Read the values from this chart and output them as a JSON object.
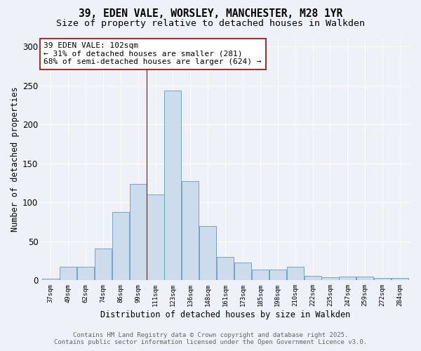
{
  "title_line1": "39, EDEN VALE, WORSLEY, MANCHESTER, M28 1YR",
  "title_line2": "Size of property relative to detached houses in Walkden",
  "xlabel": "Distribution of detached houses by size in Walkden",
  "ylabel": "Number of detached properties",
  "bar_color": "#ccdcec",
  "bar_edge_color": "#6699bb",
  "vline_color": "#993333",
  "vline_position": 5,
  "annotation_title": "39 EDEN VALE: 102sqm",
  "annotation_line2": "← 31% of detached houses are smaller (281)",
  "annotation_line3": "68% of semi-detached houses are larger (624) →",
  "annotation_box_color": "#ffffff",
  "annotation_box_edge_color": "#993333",
  "categories": [
    "37sqm",
    "49sqm",
    "62sqm",
    "74sqm",
    "86sqm",
    "99sqm",
    "111sqm",
    "123sqm",
    "136sqm",
    "148sqm",
    "161sqm",
    "173sqm",
    "185sqm",
    "198sqm",
    "210sqm",
    "222sqm",
    "235sqm",
    "247sqm",
    "259sqm",
    "272sqm",
    "284sqm"
  ],
  "values": [
    2,
    17,
    17,
    41,
    88,
    124,
    110,
    243,
    127,
    70,
    30,
    23,
    14,
    14,
    17,
    6,
    4,
    5,
    5,
    3,
    3
  ],
  "ylim": [
    0,
    310
  ],
  "yticks": [
    0,
    50,
    100,
    150,
    200,
    250,
    300
  ],
  "background_color": "#eef2f8",
  "plot_bg_color": "#eef2f8",
  "footer_line1": "Contains HM Land Registry data © Crown copyright and database right 2025.",
  "footer_line2": "Contains public sector information licensed under the Open Government Licence v3.0.",
  "title_fontsize": 10.5,
  "subtitle_fontsize": 9.5,
  "annotation_fontsize": 8,
  "footer_fontsize": 6.5
}
